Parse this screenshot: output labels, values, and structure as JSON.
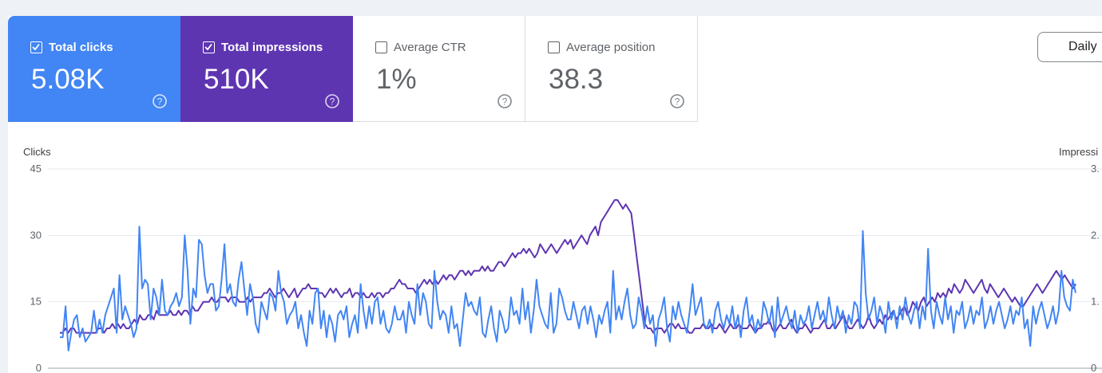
{
  "cards": [
    {
      "label": "Total clicks",
      "value": "5.08K",
      "checked": true,
      "color": "#4285f4"
    },
    {
      "label": "Total impressions",
      "value": "510K",
      "checked": true,
      "color": "#5e35b1"
    },
    {
      "label": "Average CTR",
      "value": "1%",
      "checked": false
    },
    {
      "label": "Average position",
      "value": "38.3",
      "checked": false
    }
  ],
  "dropdown": {
    "label": "Daily"
  },
  "icons": {
    "help": "help-circle-icon",
    "check": "check-icon",
    "dropdown": "caret-down-icon"
  },
  "chart_data": {
    "type": "line",
    "ylabel_left": "Clicks",
    "ylabel_right": "Impressi",
    "left_ticks": [
      "0",
      "15",
      "30",
      "45"
    ],
    "right_ticks": [
      "0",
      "1.",
      "2.",
      "3."
    ],
    "ylim_left": [
      0,
      45
    ],
    "grid": true,
    "series": [
      {
        "name": "Total clicks",
        "axis": "left",
        "color": "#4285f4",
        "values": [
          7,
          7,
          14,
          4,
          8,
          11,
          12,
          7,
          9,
          6,
          7,
          8,
          13,
          8,
          11,
          8,
          12,
          14,
          16,
          18,
          8,
          21,
          11,
          14,
          12,
          10,
          7,
          9,
          32,
          18,
          20,
          19,
          11,
          18,
          16,
          12,
          20,
          13,
          12,
          14,
          15,
          17,
          14,
          16,
          30,
          22,
          10,
          18,
          16,
          29,
          28,
          21,
          17,
          19,
          19,
          13,
          14,
          20,
          28,
          17,
          19,
          15,
          14,
          20,
          24,
          18,
          12,
          19,
          16,
          10,
          8,
          15,
          13,
          11,
          17,
          16,
          13,
          22,
          17,
          15,
          10,
          12,
          13,
          15,
          9,
          12,
          8,
          5,
          13,
          10,
          17,
          18,
          9,
          13,
          7,
          12,
          10,
          6,
          12,
          13,
          11,
          14,
          7,
          10,
          12,
          8,
          19,
          13,
          9,
          14,
          10,
          15,
          16,
          10,
          13,
          9,
          8,
          10,
          14,
          11,
          11,
          13,
          8,
          15,
          12,
          10,
          19,
          12,
          17,
          15,
          10,
          9,
          22,
          15,
          11,
          13,
          12,
          8,
          14,
          9,
          10,
          5,
          11,
          17,
          14,
          15,
          13,
          12,
          16,
          8,
          7,
          11,
          14,
          9,
          6,
          13,
          11,
          8,
          9,
          16,
          12,
          13,
          10,
          18,
          11,
          15,
          8,
          13,
          20,
          14,
          12,
          10,
          9,
          17,
          8,
          10,
          18,
          16,
          13,
          11,
          11,
          15,
          12,
          9,
          13,
          14,
          10,
          14,
          11,
          7,
          12,
          10,
          13,
          15,
          8,
          22,
          11,
          14,
          11,
          15,
          18,
          12,
          9,
          10,
          16,
          13,
          9,
          14,
          10,
          12,
          5,
          11,
          13,
          16,
          9,
          6,
          14,
          11,
          15,
          12,
          10,
          8,
          13,
          19,
          12,
          14,
          16,
          10,
          9,
          11,
          8,
          13,
          15,
          11,
          9,
          12,
          10,
          14,
          9,
          12,
          7,
          13,
          16,
          10,
          12,
          8,
          11,
          9,
          15,
          13,
          10,
          14,
          7,
          16,
          10,
          12,
          14,
          11,
          9,
          13,
          8,
          12,
          10,
          11,
          14,
          9,
          12,
          15,
          11,
          13,
          10,
          16,
          12,
          9,
          14,
          11,
          13,
          8,
          12,
          10,
          15,
          14,
          9,
          31,
          17,
          11,
          13,
          16,
          10,
          14,
          12,
          8,
          15,
          11,
          13,
          9,
          14,
          11,
          16,
          12,
          10,
          13,
          15,
          9,
          14,
          11,
          27,
          13,
          9,
          15,
          12,
          10,
          16,
          11,
          14,
          8,
          13,
          12,
          15,
          9,
          11,
          14,
          10,
          13,
          12,
          16,
          9,
          11,
          14,
          10,
          13,
          15,
          12,
          9,
          11,
          14,
          10,
          13,
          12,
          16,
          9,
          11,
          5,
          14,
          10,
          13,
          15,
          12,
          9,
          11,
          14,
          10,
          13,
          22,
          16,
          14,
          13,
          20,
          17
        ]
      },
      {
        "name": "Total impressions",
        "axis": "left",
        "color": "#5e35b1",
        "values": [
          8,
          8,
          9,
          8,
          9,
          9,
          8,
          8,
          8,
          8,
          8,
          8,
          8,
          8,
          9,
          9,
          8,
          9,
          9,
          10,
          9,
          10,
          9,
          10,
          9,
          9,
          10,
          11,
          10,
          12,
          11,
          11,
          12,
          12,
          11,
          13,
          12,
          12,
          12,
          12,
          13,
          12,
          12,
          13,
          12,
          13,
          13,
          12,
          14,
          13,
          13,
          14,
          15,
          15,
          15,
          16,
          15,
          15,
          16,
          16,
          16,
          15,
          16,
          16,
          16,
          15,
          15,
          15,
          16,
          15,
          16,
          16,
          16,
          16,
          17,
          17,
          18,
          17,
          16,
          17,
          17,
          18,
          17,
          16,
          17,
          18,
          16,
          17,
          18,
          18,
          19,
          18,
          18,
          18,
          17,
          17,
          16,
          17,
          18,
          17,
          18,
          17,
          16,
          17,
          17,
          18,
          16,
          17,
          17,
          16,
          17,
          16,
          16,
          17,
          16,
          17,
          17,
          16,
          17,
          17,
          18,
          18,
          19,
          20,
          19,
          19,
          18,
          18,
          18,
          17,
          18,
          19,
          20,
          19,
          20,
          19,
          20,
          19,
          20,
          21,
          20,
          21,
          21,
          20,
          21,
          22,
          22,
          21,
          22,
          21,
          22,
          22,
          22,
          23,
          22,
          23,
          22,
          22,
          23,
          24,
          24,
          23,
          24,
          25,
          26,
          25,
          26,
          26,
          27,
          26,
          27,
          26,
          25,
          26,
          28,
          27,
          26,
          27,
          28,
          27,
          26,
          27,
          28,
          29,
          28,
          29,
          27,
          28,
          29,
          30,
          29,
          28,
          30,
          31,
          32,
          30,
          33,
          34,
          35,
          36,
          37,
          38,
          38,
          37,
          36,
          37,
          36,
          35,
          30,
          25,
          20,
          15,
          10,
          9,
          9,
          8,
          9,
          9,
          9,
          8,
          9,
          10,
          10,
          9,
          10,
          9,
          9,
          9,
          8,
          8,
          9,
          9,
          9,
          10,
          9,
          9,
          10,
          9,
          9,
          10,
          9,
          8,
          9,
          10,
          9,
          9,
          10,
          9,
          9,
          9,
          10,
          9,
          8,
          9,
          9,
          10,
          10,
          11,
          9,
          8,
          9,
          10,
          9,
          9,
          10,
          11,
          9,
          8,
          9,
          9,
          10,
          9,
          8,
          9,
          9,
          9,
          10,
          11,
          9,
          9,
          10,
          9,
          10,
          11,
          12,
          10,
          9,
          9,
          10,
          11,
          10,
          9,
          10,
          12,
          10,
          9,
          10,
          11,
          10,
          12,
          11,
          12,
          13,
          11,
          12,
          13,
          14,
          12,
          13,
          15,
          14,
          13,
          15,
          16,
          14,
          15,
          16,
          15,
          17,
          16,
          17,
          16,
          18,
          17,
          19,
          18,
          17,
          18,
          20,
          19,
          18,
          17,
          18,
          19,
          20,
          18,
          17,
          19,
          18,
          17,
          16,
          17,
          18,
          17,
          16,
          15,
          16,
          15,
          14,
          14,
          15,
          16,
          17,
          18,
          19,
          18,
          17,
          18,
          19,
          20,
          21,
          22,
          21,
          20,
          21,
          20,
          19,
          18,
          19
        ]
      }
    ]
  }
}
